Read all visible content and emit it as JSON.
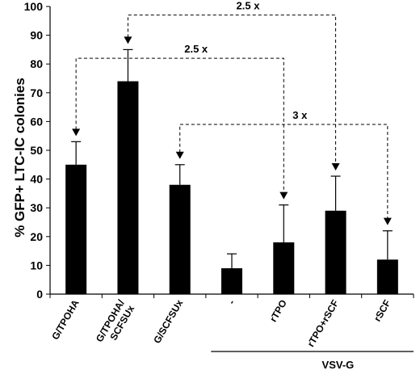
{
  "chart_data": {
    "type": "bar",
    "ylabel": "% GFP+ LTC-IC colonies",
    "ylim": [
      0,
      100
    ],
    "yticks": [
      0,
      10,
      20,
      30,
      40,
      50,
      60,
      70,
      80,
      90,
      100
    ],
    "grid": false,
    "categories": [
      "G/TPOHA",
      "G/TPOHA/\nSCFSUx",
      "G/SCFSUx",
      "-",
      "rTPO",
      "rTPO+rSCF",
      "rSCF"
    ],
    "values": [
      45,
      74,
      38,
      9,
      18,
      29,
      12
    ],
    "error_upper": [
      53,
      85,
      45,
      14,
      31,
      41,
      22
    ],
    "bar_color": "#000000",
    "group_label": "VSV-G",
    "group_categories": [
      "-",
      "rTPO",
      "rTPO+rSCF",
      "rSCF"
    ],
    "annotations": [
      {
        "label": "2.5 x",
        "from": "G/TPOHA/\nSCFSUx",
        "to": "rTPO+rSCF",
        "level": 97
      },
      {
        "label": "2.5 x",
        "from": "G/TPOHA",
        "to": "rTPO",
        "level": 82
      },
      {
        "label": "3 x",
        "from": "G/SCFSUx",
        "to": "rSCF",
        "level": 59
      }
    ]
  }
}
